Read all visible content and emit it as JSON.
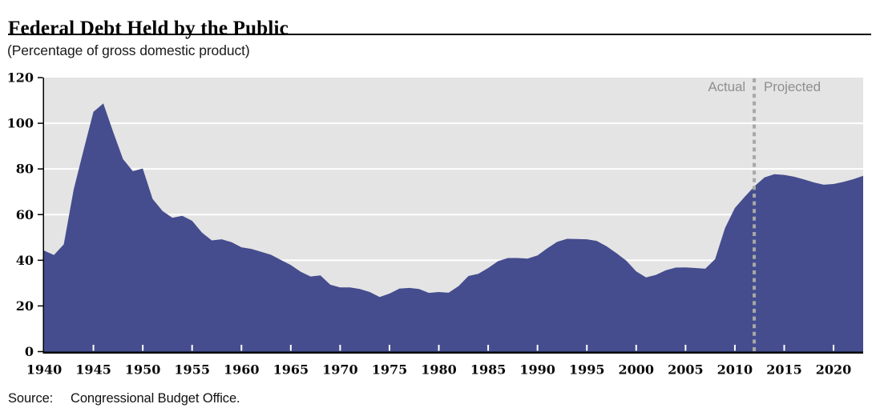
{
  "title": "Federal Debt Held by the Public",
  "subtitle": "(Percentage of gross domestic product)",
  "annotations": {
    "actual": "Actual",
    "projected": "Projected"
  },
  "source": {
    "label": "Source:",
    "text": "Congressional Budget Office."
  },
  "colors": {
    "area": "#454d8e",
    "plot_bg": "#e4e4e4",
    "grid": "#ffffff",
    "divider": "#a8a8a8",
    "annotation_text": "#8f8f8f",
    "axis": "#000000",
    "year_tick": "#ffffff"
  },
  "chart_data": {
    "type": "area",
    "title": "Federal Debt Held by the Public",
    "subtitle": "(Percentage of gross domestic product)",
    "xlabel": "",
    "ylabel": "Percentage of gross domestic product",
    "xlim": [
      1940,
      2023
    ],
    "ylim": [
      0,
      120
    ],
    "grid": true,
    "y_ticks": [
      0,
      20,
      40,
      60,
      80,
      100,
      120
    ],
    "x_ticks": [
      1940,
      1945,
      1950,
      1955,
      1960,
      1965,
      1970,
      1975,
      1980,
      1985,
      1990,
      1995,
      2000,
      2005,
      2010,
      2015,
      2020
    ],
    "divider_year": 2012,
    "divider_labels": [
      "Actual",
      "Projected"
    ],
    "x": [
      1940,
      1941,
      1942,
      1943,
      1944,
      1945,
      1946,
      1947,
      1948,
      1949,
      1950,
      1951,
      1952,
      1953,
      1954,
      1955,
      1956,
      1957,
      1958,
      1959,
      1960,
      1961,
      1962,
      1963,
      1964,
      1965,
      1966,
      1967,
      1968,
      1969,
      1970,
      1971,
      1972,
      1973,
      1974,
      1975,
      1976,
      1977,
      1978,
      1979,
      1980,
      1981,
      1982,
      1983,
      1984,
      1985,
      1986,
      1987,
      1988,
      1989,
      1990,
      1991,
      1992,
      1993,
      1994,
      1995,
      1996,
      1997,
      1998,
      1999,
      2000,
      2001,
      2002,
      2003,
      2004,
      2005,
      2006,
      2007,
      2008,
      2009,
      2010,
      2011,
      2012,
      2013,
      2014,
      2015,
      2016,
      2017,
      2018,
      2019,
      2020,
      2021,
      2022,
      2023
    ],
    "series": [
      {
        "name": "Federal debt held by the public (% of GDP)",
        "values": [
          44.2,
          42.3,
          47.0,
          70.9,
          88.3,
          105.0,
          108.7,
          96.2,
          84.3,
          79.0,
          80.2,
          66.9,
          61.6,
          58.6,
          59.5,
          57.3,
          52.1,
          48.7,
          49.2,
          47.9,
          45.7,
          45.0,
          43.7,
          42.4,
          40.1,
          37.9,
          35.0,
          32.9,
          33.4,
          29.3,
          28.1,
          28.1,
          27.4,
          26.1,
          23.9,
          25.4,
          27.6,
          27.9,
          27.4,
          25.7,
          26.1,
          25.8,
          28.7,
          33.1,
          34.1,
          36.6,
          39.6,
          41.0,
          41.0,
          40.7,
          42.1,
          45.3,
          48.1,
          49.4,
          49.3,
          49.2,
          48.5,
          46.1,
          43.1,
          39.8,
          35.1,
          32.5,
          33.6,
          35.6,
          36.8,
          36.9,
          36.6,
          36.3,
          40.5,
          54.1,
          62.9,
          67.8,
          72.5,
          76.3,
          77.7,
          77.4,
          76.6,
          75.4,
          74.1,
          73.1,
          73.4,
          74.3,
          75.5,
          77.0
        ]
      }
    ]
  }
}
